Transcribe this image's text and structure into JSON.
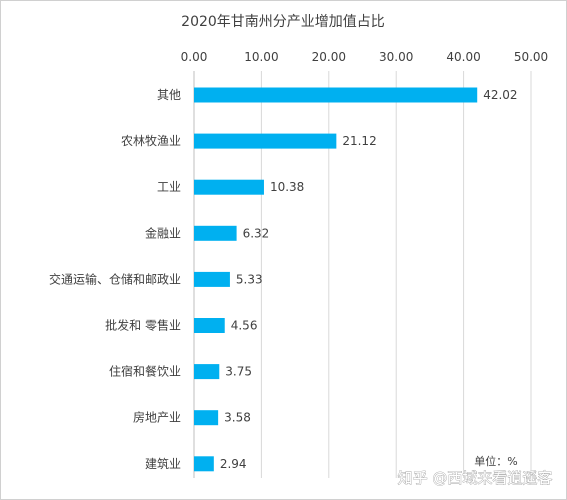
{
  "chart_data": {
    "type": "bar",
    "orientation": "horizontal",
    "title": "2020年甘南州分产业增加值占比",
    "categories": [
      "其他",
      "农林牧渔业",
      "工业",
      "金融业",
      "交通运输、仓储和邮政业",
      "批发和 零售业",
      "住宿和餐饮业",
      "房地产业",
      "建筑业"
    ],
    "values": [
      42.02,
      21.12,
      10.38,
      6.32,
      5.33,
      4.56,
      3.75,
      3.58,
      2.94
    ],
    "value_labels": [
      "42.02",
      "21.12",
      "10.38",
      "6.32",
      "5.33",
      "4.56",
      "3.75",
      "3.58",
      "2.94"
    ],
    "xlim": [
      0,
      50
    ],
    "x_ticks": [
      "0.00",
      "10.00",
      "20.00",
      "30.00",
      "40.00",
      "50.00"
    ],
    "x_axis_position": "top",
    "grid": true,
    "bar_color": "#00b0f0",
    "unit_label": "单位：%"
  },
  "watermark": "知乎 @西域来看逍遥客"
}
